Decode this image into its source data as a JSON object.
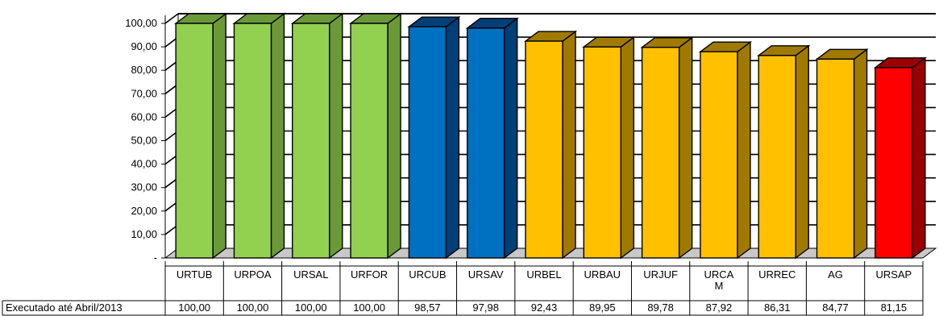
{
  "chart_data": {
    "type": "bar",
    "categories": [
      "URTUB",
      "URPOA",
      "URSAL",
      "URFOR",
      "URCUB",
      "URSAV",
      "URBEL",
      "URBAU",
      "URJUF",
      "URCAM",
      "URREC",
      "AG",
      "URSAP"
    ],
    "category_labels": [
      [
        "URTUB"
      ],
      [
        "URPOA"
      ],
      [
        "URSAL"
      ],
      [
        "URFOR"
      ],
      [
        "URCUB"
      ],
      [
        "URSAV"
      ],
      [
        "URBEL"
      ],
      [
        "URBAU"
      ],
      [
        "URJUF"
      ],
      [
        "URCA",
        "M"
      ],
      [
        "URREC"
      ],
      [
        "AG"
      ],
      [
        "URSAP"
      ]
    ],
    "series": [
      {
        "name": "Executado até Abril/2013",
        "values": [
          100.0,
          100.0,
          100.0,
          100.0,
          98.57,
          97.98,
          92.43,
          89.95,
          89.78,
          87.92,
          86.31,
          84.77,
          81.15
        ],
        "value_labels": [
          "100,00",
          "100,00",
          "100,00",
          "100,00",
          "98,57",
          "97,98",
          "92,43",
          "89,95",
          "89,78",
          "87,92",
          "86,31",
          "84,77",
          "81,15"
        ]
      }
    ],
    "bar_colors": [
      "#92d050",
      "#92d050",
      "#92d050",
      "#92d050",
      "#0070c0",
      "#0070c0",
      "#ffc000",
      "#ffc000",
      "#ffc000",
      "#ffc000",
      "#ffc000",
      "#ffc000",
      "#ff0000"
    ],
    "bar_side_colors": [
      "#6a9a38",
      "#6a9a38",
      "#6a9a38",
      "#6a9a38",
      "#003f78",
      "#003f78",
      "#a07a00",
      "#a07a00",
      "#a07a00",
      "#a07a00",
      "#a07a00",
      "#a07a00",
      "#9a0000"
    ],
    "y_ticks": [
      "-",
      "10,00",
      "20,00",
      "30,00",
      "40,00",
      "50,00",
      "60,00",
      "70,00",
      "80,00",
      "90,00",
      "100,00"
    ],
    "ylim": [
      0,
      100
    ],
    "grid": true,
    "data_table": true,
    "style_3d": true
  }
}
